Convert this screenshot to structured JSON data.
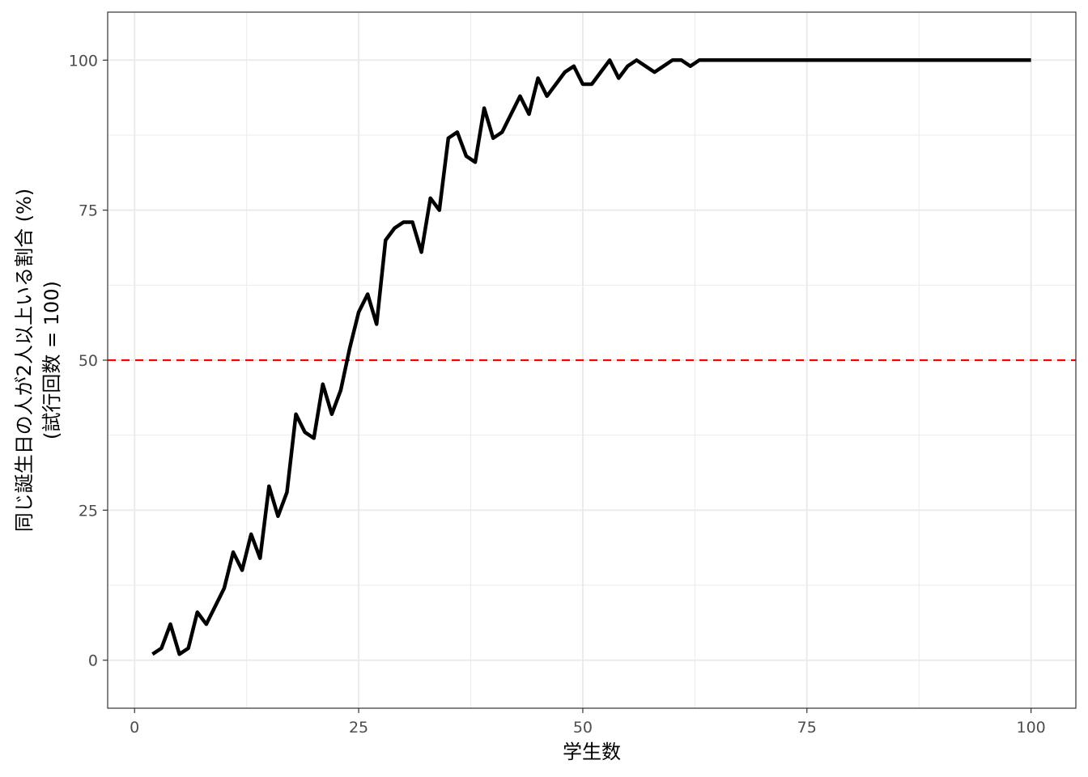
{
  "chart_data": {
    "type": "line",
    "title": "",
    "xlabel": "学生数",
    "ylabel_lines": [
      "同じ誕生日の人が2人以上いる割合 (%)",
      "(試行回数 = 100)"
    ],
    "xlim": [
      -3,
      105
    ],
    "ylim": [
      -8,
      108
    ],
    "x_ticks": [
      0,
      25,
      50,
      75,
      100
    ],
    "y_ticks": [
      0,
      25,
      50,
      75,
      100
    ],
    "grid": true,
    "reference_line": {
      "y": 50,
      "style": "dashed",
      "color": "#ff0000"
    },
    "series": [
      {
        "color": "#000000",
        "x": [
          2,
          3,
          4,
          5,
          6,
          7,
          8,
          9,
          10,
          11,
          12,
          13,
          14,
          15,
          16,
          17,
          18,
          19,
          20,
          21,
          22,
          23,
          24,
          25,
          26,
          27,
          28,
          29,
          30,
          31,
          32,
          33,
          34,
          35,
          36,
          37,
          38,
          39,
          40,
          41,
          42,
          43,
          44,
          45,
          46,
          47,
          48,
          49,
          50,
          51,
          52,
          53,
          54,
          55,
          56,
          57,
          58,
          59,
          60,
          61,
          62,
          63,
          64,
          65,
          66,
          67,
          68,
          69,
          70,
          71,
          72,
          73,
          74,
          75,
          76,
          77,
          78,
          79,
          80,
          81,
          82,
          83,
          84,
          85,
          86,
          87,
          88,
          89,
          90,
          91,
          92,
          93,
          94,
          95,
          96,
          97,
          98,
          99,
          100
        ],
        "y": [
          1,
          2,
          6,
          1,
          2,
          8,
          6,
          9,
          12,
          18,
          15,
          21,
          17,
          29,
          24,
          28,
          41,
          38,
          37,
          46,
          41,
          45,
          52,
          58,
          61,
          56,
          70,
          72,
          73,
          73,
          68,
          77,
          75,
          87,
          88,
          84,
          83,
          92,
          87,
          88,
          91,
          94,
          91,
          97,
          94,
          96,
          98,
          99,
          96,
          96,
          98,
          100,
          97,
          99,
          100,
          99,
          98,
          99,
          100,
          100,
          99,
          100,
          100,
          100,
          100,
          100,
          100,
          100,
          100,
          100,
          100,
          100,
          100,
          100,
          100,
          100,
          100,
          100,
          100,
          100,
          100,
          100,
          100,
          100,
          100,
          100,
          100,
          100,
          100,
          100,
          100,
          100,
          100,
          100,
          100,
          100,
          100,
          100,
          100
        ]
      }
    ],
    "colors": {
      "line": "#000000",
      "reference": "#ff0000",
      "grid": "#ebebeb",
      "panel_border": "#333333",
      "tick_text": "#4d4d4d"
    }
  }
}
